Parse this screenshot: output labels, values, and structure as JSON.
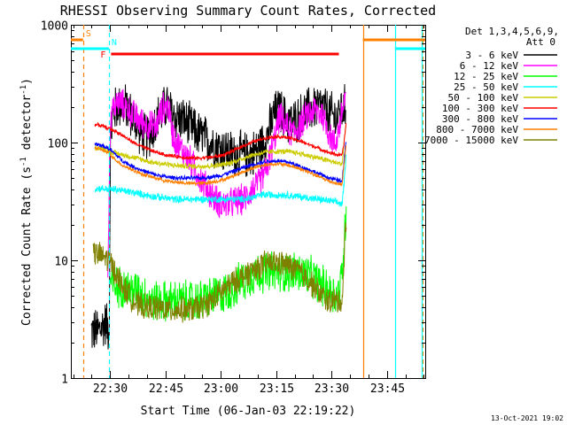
{
  "chart_data": {
    "type": "line",
    "title": "RHESSI Observing Summary Count Rates, Corrected",
    "ylabel_main": "Corrected Count Rate (s",
    "ylabel_sup1": "-1",
    "ylabel_mid": " detector",
    "ylabel_sup2": "-1",
    "ylabel_end": ")",
    "xlabel": "Start Time (06-Jan-03 22:19:22)",
    "yscale": "log",
    "ylim": [
      1,
      1000
    ],
    "xlim_minutes": [
      0,
      96
    ],
    "x_ticks": [
      {
        "t": 10.6,
        "label": "22:30"
      },
      {
        "t": 25.6,
        "label": "22:45"
      },
      {
        "t": 40.6,
        "label": "23:00"
      },
      {
        "t": 55.6,
        "label": "23:15"
      },
      {
        "t": 70.6,
        "label": "23:30"
      },
      {
        "t": 85.6,
        "label": "23:45"
      }
    ],
    "y_ticks": [
      {
        "v": 1,
        "label": "1"
      },
      {
        "v": 10,
        "label": "10"
      },
      {
        "v": 100,
        "label": "100"
      },
      {
        "v": 1000,
        "label": "1000"
      }
    ],
    "legend_header": [
      "Det 1,3,4,5,6,9,",
      "Att 0"
    ],
    "series": [
      {
        "name": "3 - 6 keV",
        "color": "#000000",
        "noise": 0.45,
        "points": [
          [
            5.5,
            2.5
          ],
          [
            7.5,
            2.5
          ],
          [
            9.5,
            3
          ],
          [
            10.4,
            2.5
          ],
          [
            10.7,
            100
          ],
          [
            11.5,
            180
          ],
          [
            13,
            210
          ],
          [
            15,
            200
          ],
          [
            17,
            160
          ],
          [
            19,
            120
          ],
          [
            20.5,
            110
          ],
          [
            22,
            130
          ],
          [
            24,
            170
          ],
          [
            26,
            210
          ],
          [
            27.5,
            170
          ],
          [
            29.5,
            160
          ],
          [
            31,
            150
          ],
          [
            33,
            130
          ],
          [
            35,
            115
          ],
          [
            37,
            105
          ],
          [
            39,
            95
          ],
          [
            41,
            88
          ],
          [
            43,
            82
          ],
          [
            45,
            80
          ],
          [
            47,
            78
          ],
          [
            49,
            80
          ],
          [
            51,
            90
          ],
          [
            53,
            110
          ],
          [
            55,
            170
          ],
          [
            56.5,
            190
          ],
          [
            58,
            160
          ],
          [
            60,
            145
          ],
          [
            62,
            165
          ],
          [
            64,
            185
          ],
          [
            66,
            200
          ],
          [
            68,
            200
          ],
          [
            70,
            175
          ],
          [
            72,
            160
          ],
          [
            73,
            180
          ],
          [
            74.5,
            200
          ]
        ]
      },
      {
        "name": "6 - 12 keV",
        "color": "#ff00ff",
        "noise": 0.3,
        "points": [
          [
            10,
            8
          ],
          [
            10.7,
            150
          ],
          [
            11.5,
            200
          ],
          [
            13,
            220
          ],
          [
            15,
            200
          ],
          [
            17,
            170
          ],
          [
            19,
            150
          ],
          [
            21,
            140
          ],
          [
            23,
            135
          ],
          [
            25,
            200
          ],
          [
            26.5,
            200
          ],
          [
            27.5,
            120
          ],
          [
            29,
            95
          ],
          [
            31,
            80
          ],
          [
            33,
            65
          ],
          [
            35,
            50
          ],
          [
            37,
            40
          ],
          [
            39,
            33
          ],
          [
            41,
            30
          ],
          [
            43,
            30
          ],
          [
            45,
            32
          ],
          [
            47,
            33
          ],
          [
            49,
            40
          ],
          [
            51,
            45
          ],
          [
            53,
            60
          ],
          [
            55,
            100
          ],
          [
            56.5,
            170
          ],
          [
            58,
            140
          ],
          [
            60,
            120
          ],
          [
            62,
            140
          ],
          [
            64,
            170
          ],
          [
            66,
            190
          ],
          [
            68,
            175
          ],
          [
            70,
            120
          ],
          [
            71.5,
            95
          ],
          [
            73,
            150
          ],
          [
            74.5,
            270
          ]
        ]
      },
      {
        "name": "12 - 25 keV",
        "color": "#00ff00",
        "noise": 0.4,
        "points": [
          [
            10.7,
            6.5
          ],
          [
            12,
            6
          ],
          [
            14,
            6
          ],
          [
            16,
            5.5
          ],
          [
            18,
            5.5
          ],
          [
            20,
            5
          ],
          [
            22,
            4.5
          ],
          [
            25,
            4.5
          ],
          [
            28,
            4.5
          ],
          [
            31,
            4.5
          ],
          [
            34,
            4.5
          ],
          [
            37,
            4.8
          ],
          [
            40,
            5
          ],
          [
            43,
            5.5
          ],
          [
            46,
            6.5
          ],
          [
            49,
            7.5
          ],
          [
            52,
            8
          ],
          [
            55,
            8
          ],
          [
            58,
            8
          ],
          [
            61,
            8
          ],
          [
            64,
            7.5
          ],
          [
            67,
            6.5
          ],
          [
            70,
            5.5
          ],
          [
            72,
            5
          ],
          [
            73,
            6
          ],
          [
            74,
            12
          ],
          [
            74.6,
            30
          ]
        ]
      },
      {
        "name": "25 - 50 keV",
        "color": "#00ffff",
        "noise": 0.07,
        "points": [
          [
            6.5,
            40
          ],
          [
            8,
            41
          ],
          [
            10,
            40
          ],
          [
            12,
            40
          ],
          [
            14,
            39
          ],
          [
            16,
            38
          ],
          [
            18,
            37
          ],
          [
            20,
            36
          ],
          [
            22,
            35
          ],
          [
            25,
            34
          ],
          [
            28,
            33
          ],
          [
            31,
            33
          ],
          [
            34,
            33
          ],
          [
            37,
            33
          ],
          [
            40,
            33
          ],
          [
            43,
            33
          ],
          [
            46,
            33
          ],
          [
            49,
            34
          ],
          [
            52,
            36
          ],
          [
            55,
            36
          ],
          [
            58,
            36
          ],
          [
            61,
            35
          ],
          [
            64,
            34
          ],
          [
            67,
            33
          ],
          [
            70,
            32
          ],
          [
            72,
            31
          ],
          [
            73.5,
            30
          ],
          [
            74,
            45
          ],
          [
            74.6,
            80
          ]
        ]
      },
      {
        "name": "50 - 100 keV",
        "color": "#cccc00",
        "noise": 0.05,
        "points": [
          [
            6.5,
            90
          ],
          [
            8,
            90
          ],
          [
            10,
            85
          ],
          [
            13,
            80
          ],
          [
            16,
            76
          ],
          [
            19,
            72
          ],
          [
            22,
            68
          ],
          [
            25,
            66
          ],
          [
            28,
            64
          ],
          [
            31,
            63
          ],
          [
            34,
            63
          ],
          [
            37,
            63
          ],
          [
            40,
            64
          ],
          [
            43,
            67
          ],
          [
            46,
            72
          ],
          [
            49,
            78
          ],
          [
            52,
            82
          ],
          [
            55,
            84
          ],
          [
            58,
            84
          ],
          [
            61,
            82
          ],
          [
            64,
            78
          ],
          [
            67,
            74
          ],
          [
            70,
            70
          ],
          [
            72,
            67
          ],
          [
            73.5,
            66
          ],
          [
            74,
            100
          ],
          [
            74.6,
            150
          ]
        ]
      },
      {
        "name": "100 - 300 keV",
        "color": "#ff0000",
        "noise": 0.035,
        "points": [
          [
            6.5,
            142
          ],
          [
            8,
            140
          ],
          [
            10,
            132
          ],
          [
            12,
            125
          ],
          [
            14,
            115
          ],
          [
            17,
            100
          ],
          [
            20,
            90
          ],
          [
            23,
            83
          ],
          [
            26,
            78
          ],
          [
            29,
            76
          ],
          [
            32,
            74
          ],
          [
            35,
            74
          ],
          [
            38,
            75
          ],
          [
            41,
            78
          ],
          [
            44,
            85
          ],
          [
            47,
            95
          ],
          [
            50,
            103
          ],
          [
            53,
            110
          ],
          [
            56,
            113
          ],
          [
            59,
            110
          ],
          [
            62,
            103
          ],
          [
            65,
            95
          ],
          [
            68,
            87
          ],
          [
            70,
            82
          ],
          [
            72,
            79
          ],
          [
            73.5,
            78
          ],
          [
            74,
            100
          ],
          [
            74.6,
            150
          ]
        ]
      },
      {
        "name": "300 - 800 keV",
        "color": "#0000ff",
        "noise": 0.04,
        "points": [
          [
            6.5,
            98
          ],
          [
            8,
            95
          ],
          [
            10,
            90
          ],
          [
            12,
            80
          ],
          [
            14,
            70
          ],
          [
            17,
            62
          ],
          [
            20,
            57
          ],
          [
            23,
            53
          ],
          [
            26,
            51
          ],
          [
            29,
            50
          ],
          [
            32,
            50
          ],
          [
            35,
            50
          ],
          [
            38,
            51
          ],
          [
            41,
            53
          ],
          [
            44,
            57
          ],
          [
            47,
            62
          ],
          [
            50,
            66
          ],
          [
            53,
            69
          ],
          [
            56,
            70
          ],
          [
            59,
            68
          ],
          [
            62,
            63
          ],
          [
            65,
            58
          ],
          [
            68,
            53
          ],
          [
            70,
            50
          ],
          [
            72,
            48
          ],
          [
            73.5,
            47
          ],
          [
            74,
            70
          ],
          [
            74.6,
            110
          ]
        ]
      },
      {
        "name": "800 - 7000 keV",
        "color": "#ff8000",
        "noise": 0.035,
        "points": [
          [
            6.5,
            90
          ],
          [
            8,
            88
          ],
          [
            10,
            82
          ],
          [
            12,
            72
          ],
          [
            14,
            64
          ],
          [
            17,
            58
          ],
          [
            20,
            53
          ],
          [
            23,
            50
          ],
          [
            26,
            47
          ],
          [
            29,
            46
          ],
          [
            32,
            45
          ],
          [
            35,
            45
          ],
          [
            38,
            46
          ],
          [
            41,
            48
          ],
          [
            44,
            52
          ],
          [
            47,
            57
          ],
          [
            50,
            62
          ],
          [
            53,
            65
          ],
          [
            56,
            66
          ],
          [
            59,
            64
          ],
          [
            62,
            60
          ],
          [
            65,
            55
          ],
          [
            68,
            50
          ],
          [
            70,
            47
          ],
          [
            72,
            45
          ],
          [
            73.5,
            44
          ],
          [
            74,
            65
          ],
          [
            74.6,
            100
          ]
        ]
      },
      {
        "name": "7000 - 15000 keV",
        "color": "#808000",
        "noise": 0.25,
        "points": [
          [
            6,
            11.5
          ],
          [
            8,
            11
          ],
          [
            9.5,
            10.5
          ],
          [
            10.5,
            10
          ],
          [
            12,
            8
          ],
          [
            14,
            6
          ],
          [
            16,
            5
          ],
          [
            18,
            4.2
          ],
          [
            20,
            4
          ],
          [
            23,
            4
          ],
          [
            26,
            3.8
          ],
          [
            29,
            3.8
          ],
          [
            32,
            3.8
          ],
          [
            35,
            4
          ],
          [
            38,
            4.5
          ],
          [
            41,
            5.5
          ],
          [
            44,
            6.5
          ],
          [
            47,
            7.5
          ],
          [
            50,
            8.5
          ],
          [
            53,
            9.5
          ],
          [
            56,
            9.5
          ],
          [
            59,
            9
          ],
          [
            62,
            8
          ],
          [
            65,
            6.5
          ],
          [
            68,
            5
          ],
          [
            70,
            4.5
          ],
          [
            72,
            4.5
          ],
          [
            73.5,
            4.5
          ],
          [
            74,
            10
          ],
          [
            74.6,
            25
          ]
        ]
      }
    ],
    "markers": [
      {
        "label": "S",
        "color": "#ff8000",
        "style": "dashed",
        "x_start": 3.3,
        "x_end": 79.1,
        "y_value": 750,
        "bar_start": 0,
        "bar_end": 3.3,
        "bar2_start": 79.1,
        "bar2_end": 96
      },
      {
        "label": "N",
        "color": "#00ffff",
        "style": "dashed",
        "x_start": 10.3,
        "x_end": 87.8,
        "y_value": 630,
        "bar_start": 0,
        "bar_end": 10.3,
        "bar2_start": 87.8,
        "bar2_end": 96
      },
      {
        "label": "F",
        "color": "#ff0000",
        "style": "solid",
        "x_start": 10.9,
        "x_end": 72.6,
        "y_value": 560
      }
    ],
    "vertical_lines": [
      {
        "t": 3.3,
        "color": "#ff8000",
        "style": "dashed"
      },
      {
        "t": 79.1,
        "color": "#ff8000",
        "style": "solid"
      },
      {
        "t": 95.3,
        "color": "#ff8000",
        "style": "dashed"
      },
      {
        "t": 10.3,
        "color": "#00ffff",
        "style": "dashed"
      },
      {
        "t": 87.8,
        "color": "#00ffff",
        "style": "solid"
      },
      {
        "t": 95.1,
        "color": "#00ffff",
        "style": "solid"
      }
    ]
  },
  "footer": {
    "timestamp": "13-Oct-2021 19:02"
  }
}
